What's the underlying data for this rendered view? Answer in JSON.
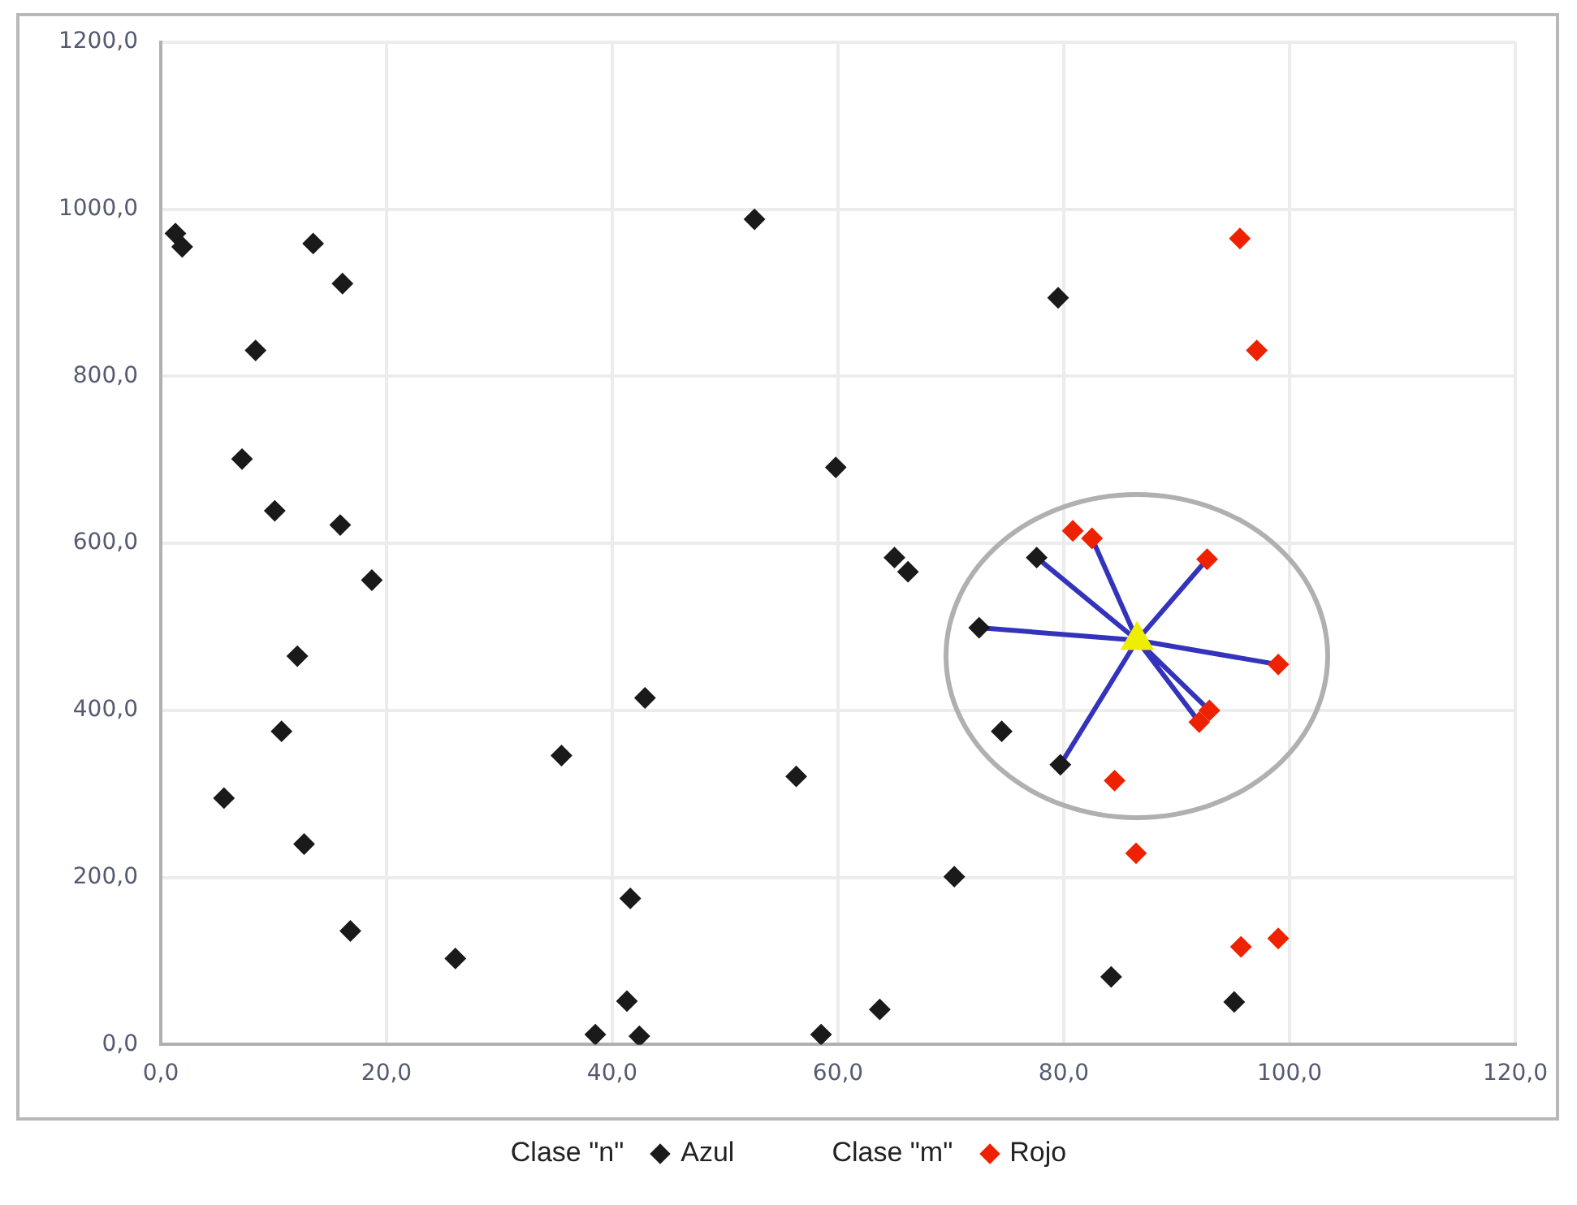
{
  "chart_data": {
    "type": "scatter",
    "marker": "diamond",
    "grid": true,
    "legend": "bottom",
    "annotations": [
      "Clase \"n\"",
      "Clase \"m\""
    ],
    "xlim": [
      0,
      120
    ],
    "xticks": [
      {
        "value": 0,
        "label": "0,0"
      },
      {
        "value": 20,
        "label": "20,0"
      },
      {
        "value": 40,
        "label": "40,0"
      },
      {
        "value": 60,
        "label": "60,0"
      },
      {
        "value": 80,
        "label": "80,0"
      },
      {
        "value": 100,
        "label": "100,0"
      },
      {
        "value": 120,
        "label": "120,0"
      }
    ],
    "ylim": [
      0,
      1200
    ],
    "yticks": [
      {
        "value": 0,
        "label": "0,0"
      },
      {
        "value": 200,
        "label": "200,0"
      },
      {
        "value": 400,
        "label": "400,0"
      },
      {
        "value": 600,
        "label": "600,0"
      },
      {
        "value": 800,
        "label": "800,0"
      },
      {
        "value": 1000,
        "label": "1000,0"
      },
      {
        "value": 1200,
        "label": "1200,0"
      }
    ],
    "series": [
      {
        "type": "line",
        "marker": "none",
        "color": "#3333bb",
        "x": [
          86.5,
          72.5,
          null,
          86.5,
          77.6,
          null,
          86.5,
          79.7,
          null,
          86.5,
          82.5,
          null,
          86.5,
          92.7,
          null,
          86.5,
          99.0,
          null,
          86.5,
          92.9,
          null,
          86.5,
          92.0
        ],
        "values": [
          484,
          499,
          null,
          484,
          583,
          null,
          484,
          335,
          null,
          484,
          606,
          null,
          484,
          581,
          null,
          484,
          455,
          null,
          484,
          400,
          null,
          484,
          386
        ]
      },
      {
        "name": "Azul",
        "color": "#1a1a1a",
        "x": [
          1.3,
          1.9,
          13.5,
          16.1,
          8.4,
          7.2,
          10.1,
          15.9,
          18.7,
          12.1,
          10.7,
          5.6,
          12.7,
          16.8,
          26.1,
          35.5,
          52.6,
          79.5,
          59.8,
          65.0,
          66.2,
          42.9,
          56.3,
          41.6,
          41.3,
          42.4,
          38.5,
          58.5,
          63.7,
          70.3,
          77.6,
          72.5,
          74.5,
          79.7,
          84.2,
          95.1
        ],
        "values": [
          971,
          955,
          959,
          911,
          831,
          701,
          639,
          622,
          556,
          465,
          375,
          295,
          240,
          136,
          103,
          346,
          988,
          894,
          691,
          583,
          566,
          415,
          321,
          175,
          52,
          10,
          12,
          12,
          42,
          201,
          583,
          499,
          375,
          335,
          81,
          51
        ]
      },
      {
        "name": "Rojo",
        "color": "#ee2200",
        "x": [
          95.6,
          97.1,
          80.8,
          82.5,
          92.7,
          99.0,
          92.9,
          92.0,
          84.5,
          86.4,
          95.7,
          99.0
        ],
        "values": [
          965,
          831,
          615,
          606,
          581,
          455,
          400,
          386,
          316,
          229,
          117,
          127
        ]
      },
      {
        "marker": "triangle",
        "color": "#eeee00",
        "x": [
          86.5
        ],
        "values": [
          484
        ]
      }
    ]
  }
}
